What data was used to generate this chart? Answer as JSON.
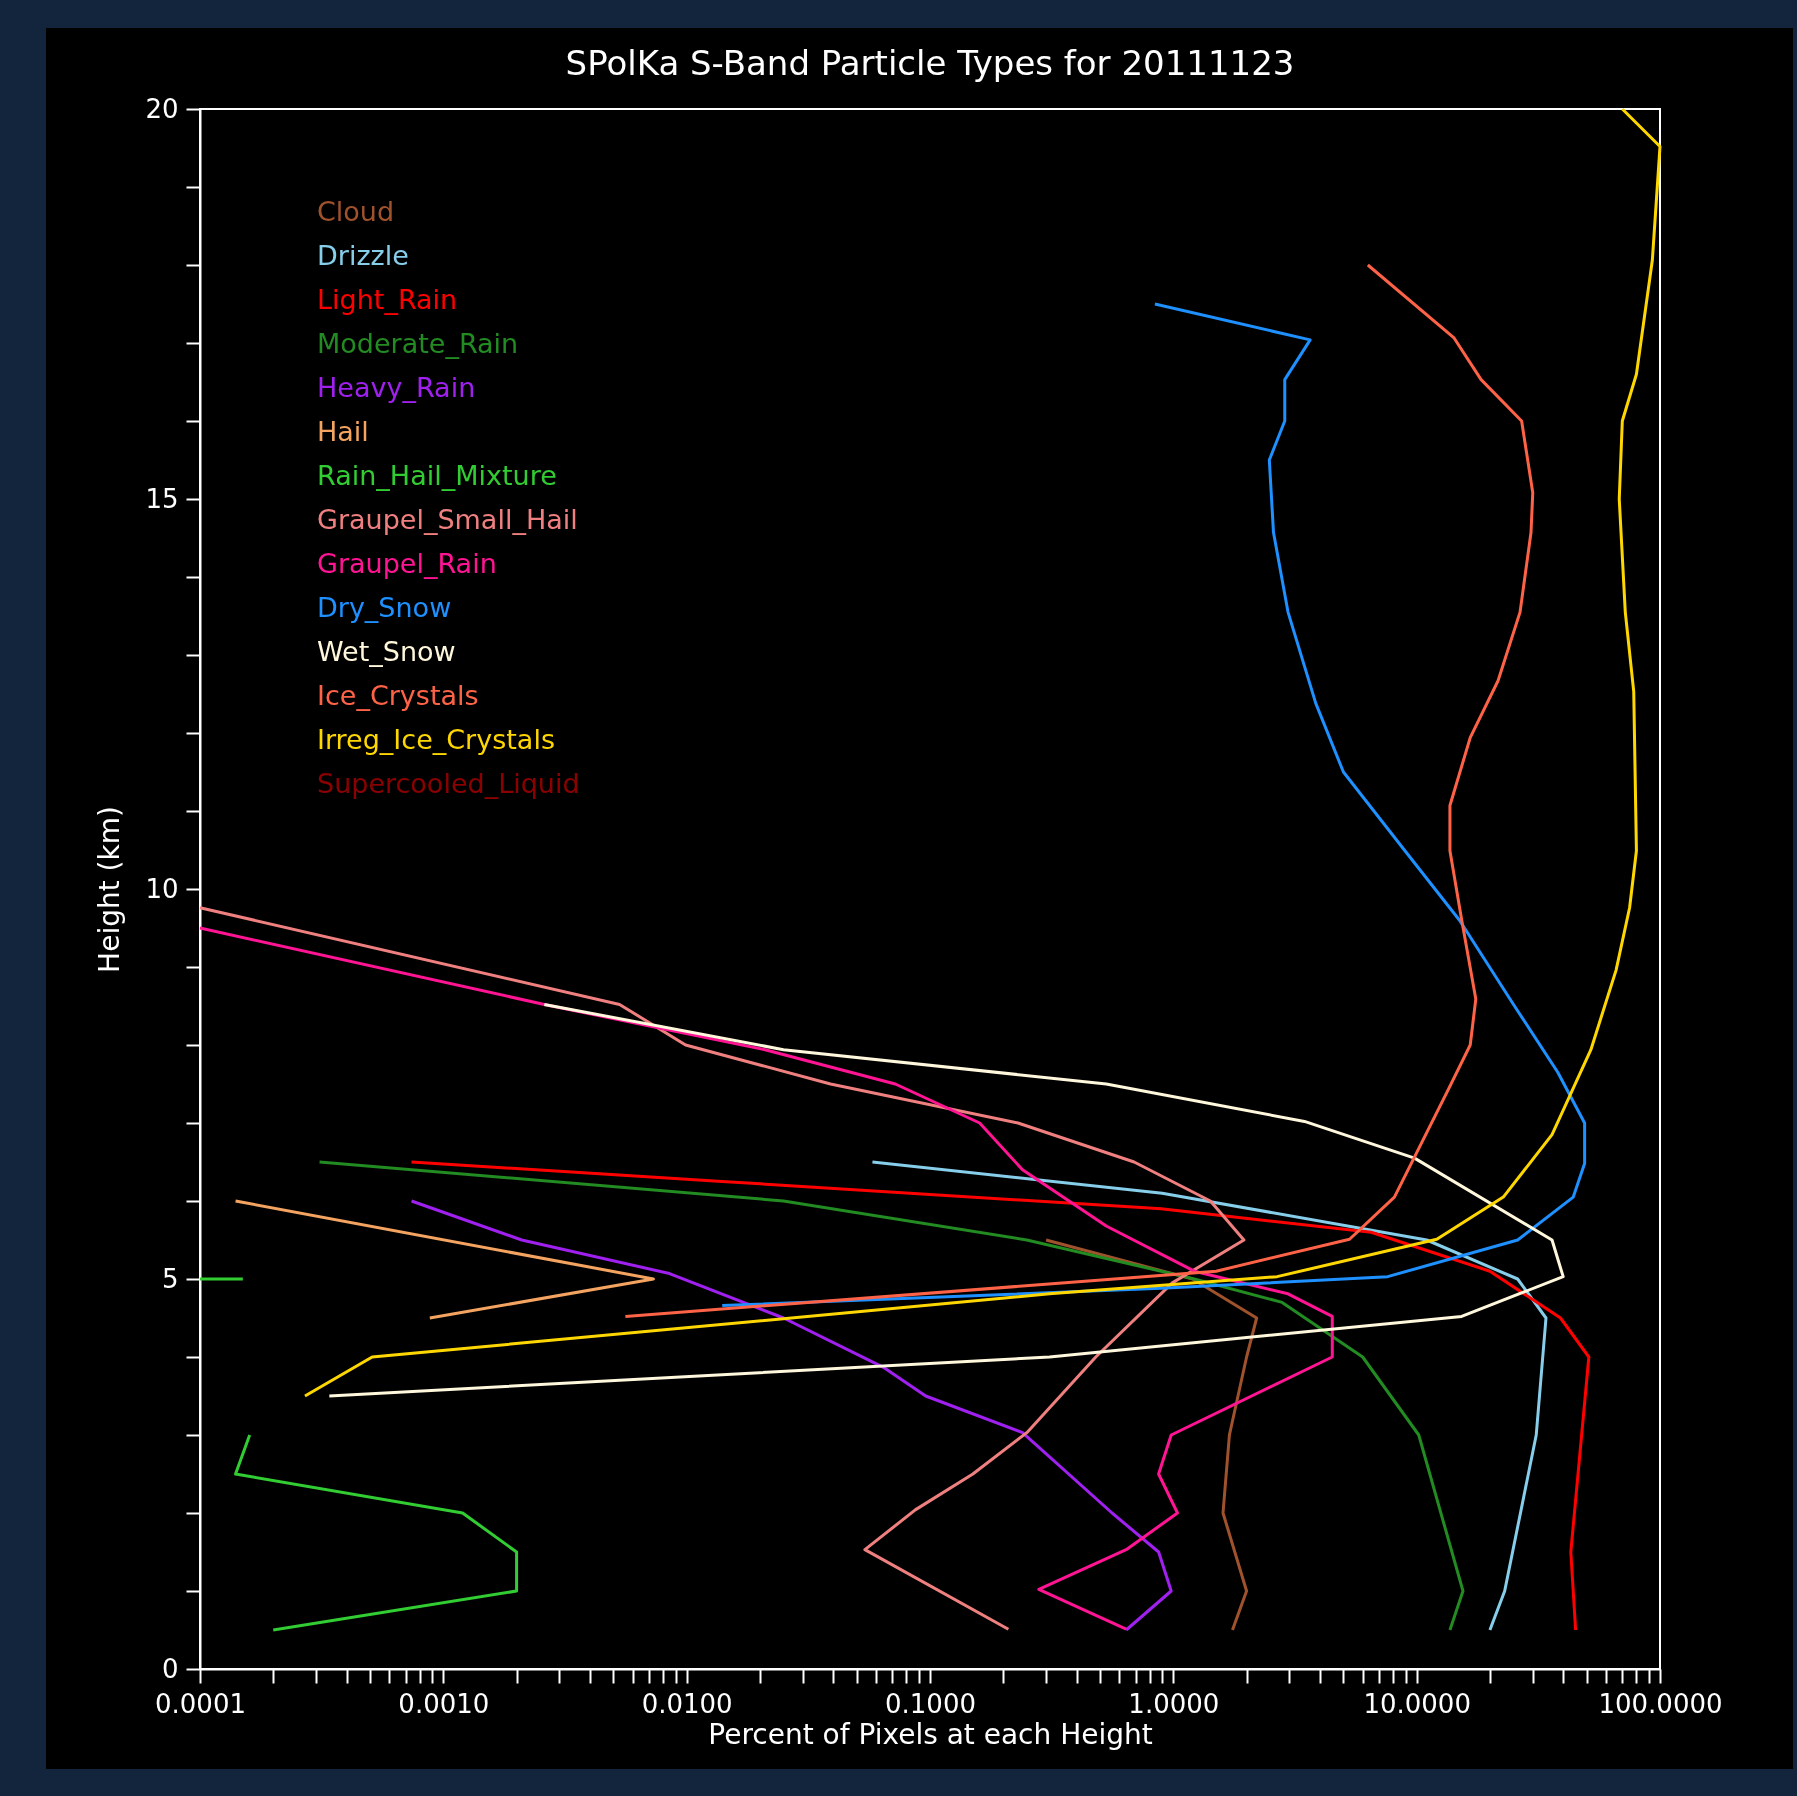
{
  "chart_data": {
    "type": "line",
    "title": "SPolKa S-Band Particle Types for 20111123",
    "xlabel": "Percent of Pixels at each Height",
    "ylabel": "Height (km)",
    "log": "x",
    "grid": false,
    "legend": "top left",
    "xlim": [
      0.0001,
      100
    ],
    "ylim": [
      0,
      20
    ],
    "xticks": [
      {
        "value": 0.0001,
        "label": "0.0001"
      },
      {
        "value": 0.0002,
        "label": null
      },
      {
        "value": 0.0003,
        "label": null
      },
      {
        "value": 0.0004,
        "label": null
      },
      {
        "value": 0.0005,
        "label": null
      },
      {
        "value": 0.0006,
        "label": null
      },
      {
        "value": 0.0007,
        "label": null
      },
      {
        "value": 0.0008,
        "label": null
      },
      {
        "value": 0.0009,
        "label": null
      },
      {
        "value": 0.001,
        "label": "0.0010"
      },
      {
        "value": 0.002,
        "label": null
      },
      {
        "value": 0.003,
        "label": null
      },
      {
        "value": 0.004,
        "label": null
      },
      {
        "value": 0.005,
        "label": null
      },
      {
        "value": 0.006,
        "label": null
      },
      {
        "value": 0.007,
        "label": null
      },
      {
        "value": 0.008,
        "label": null
      },
      {
        "value": 0.009,
        "label": null
      },
      {
        "value": 0.01,
        "label": "0.0100"
      },
      {
        "value": 0.02,
        "label": null
      },
      {
        "value": 0.03,
        "label": null
      },
      {
        "value": 0.04,
        "label": null
      },
      {
        "value": 0.05,
        "label": null
      },
      {
        "value": 0.06,
        "label": null
      },
      {
        "value": 0.07,
        "label": null
      },
      {
        "value": 0.08,
        "label": null
      },
      {
        "value": 0.09,
        "label": null
      },
      {
        "value": 0.1,
        "label": "0.1000"
      },
      {
        "value": 0.2,
        "label": null
      },
      {
        "value": 0.3,
        "label": null
      },
      {
        "value": 0.4,
        "label": null
      },
      {
        "value": 0.5,
        "label": null
      },
      {
        "value": 0.6,
        "label": null
      },
      {
        "value": 0.7,
        "label": null
      },
      {
        "value": 0.8,
        "label": null
      },
      {
        "value": 0.9,
        "label": null
      },
      {
        "value": 1,
        "label": "1.0000"
      },
      {
        "value": 2,
        "label": null
      },
      {
        "value": 3,
        "label": null
      },
      {
        "value": 4,
        "label": null
      },
      {
        "value": 5,
        "label": null
      },
      {
        "value": 6,
        "label": null
      },
      {
        "value": 7,
        "label": null
      },
      {
        "value": 8,
        "label": null
      },
      {
        "value": 9,
        "label": null
      },
      {
        "value": 10,
        "label": "10.0000"
      },
      {
        "value": 20,
        "label": null
      },
      {
        "value": 30,
        "label": null
      },
      {
        "value": 40,
        "label": null
      },
      {
        "value": 50,
        "label": null
      },
      {
        "value": 60,
        "label": null
      },
      {
        "value": 70,
        "label": null
      },
      {
        "value": 80,
        "label": null
      },
      {
        "value": 90,
        "label": null
      },
      {
        "value": 100,
        "label": "100.0000"
      }
    ],
    "yticks": [
      0,
      {
        "value": 1,
        "label": null
      },
      {
        "value": 2,
        "label": null
      },
      {
        "value": 3,
        "label": null
      },
      {
        "value": 4,
        "label": null
      },
      5,
      {
        "value": 6,
        "label": null
      },
      {
        "value": 7,
        "label": null
      },
      {
        "value": 8,
        "label": null
      },
      {
        "value": 9,
        "label": null
      },
      10,
      {
        "value": 11,
        "label": null
      },
      {
        "value": 12,
        "label": null
      },
      {
        "value": 13,
        "label": null
      },
      {
        "value": 14,
        "label": null
      },
      15,
      {
        "value": 16,
        "label": null
      },
      {
        "value": 17,
        "label": null
      },
      {
        "value": 18,
        "label": null
      },
      {
        "value": 19,
        "label": null
      },
      20
    ],
    "series": [
      {
        "name": "Cloud",
        "color": "#a0522d",
        "x": [
          1.75,
          2.0,
          1.6,
          1.7,
          2.0,
          2.2,
          1.2,
          0.3
        ],
        "values": [
          0.5,
          1,
          2,
          3,
          4,
          4.5,
          5,
          5.5
        ]
      },
      {
        "name": "Drizzle",
        "color": "#87ceeb",
        "x": [
          20,
          23,
          31,
          34,
          26,
          11,
          0.9,
          0.058
        ],
        "values": [
          0.5,
          1,
          3,
          4.5,
          5,
          5.5,
          6.1,
          6.5
        ]
      },
      {
        "name": "Light_Rain",
        "color": "#ff0000",
        "x": [
          45,
          43,
          51,
          39,
          20,
          6.5,
          0.89,
          0.014,
          0.00074
        ],
        "values": [
          0.5,
          1.5,
          4,
          4.5,
          5.1,
          5.6,
          5.9,
          6.25,
          6.5
        ]
      },
      {
        "name": "Moderate_Rain",
        "color": "#228b22",
        "x": [
          13.7,
          15.5,
          10.2,
          6.0,
          2.8,
          1.22,
          0.25,
          0.025,
          0.00031
        ],
        "values": [
          0.5,
          1,
          3,
          4,
          4.7,
          5,
          5.5,
          6,
          6.5
        ]
      },
      {
        "name": "Heavy_Rain",
        "color": "#a020f0",
        "x": [
          0.00074,
          0.0021,
          0.0085,
          0.025,
          0.065,
          0.096,
          0.24,
          0.56,
          0.87,
          0.98,
          0.64
        ],
        "values": [
          6.0,
          5.5,
          5.07,
          4.5,
          3.86,
          3.5,
          3.03,
          2.0,
          1.5,
          1.0,
          0.5
        ]
      },
      {
        "name": "Hail",
        "color": "#f4a460",
        "x": [
          0.00014,
          0.0073,
          0.00088
        ],
        "values": [
          6.0,
          5.0,
          4.5
        ]
      },
      {
        "name": "Rain_Hail_Mixture",
        "color": "#32cd32",
        "x": [
          0.0002,
          0.002,
          0.002,
          0.0012,
          0.00014,
          0.00016,
          null,
          0.0001,
          0.00015
        ],
        "values": [
          0.5,
          1.0,
          1.5,
          2.0,
          2.5,
          3.0,
          null,
          5.0,
          5.0
        ]
      },
      {
        "name": "Graupel_Small_Hail",
        "color": "#f08080",
        "x": [
          0.0001,
          0.0053,
          0.0099,
          0.039,
          0.23,
          0.69,
          1.42,
          1.95,
          0.99,
          0.48,
          0.25,
          0.15,
          0.087,
          0.054,
          0.21
        ],
        "values": [
          9.76,
          8.52,
          8.0,
          7.5,
          7.0,
          6.5,
          6.0,
          5.5,
          4.95,
          4.0,
          3.03,
          2.5,
          2.04,
          1.53,
          0.51
        ]
      },
      {
        "name": "Graupel_Rain",
        "color": "#ff1493",
        "x": [
          0.0001,
          0.0026,
          0.021,
          0.072,
          0.16,
          0.24,
          0.53,
          1.22,
          2.96,
          4.5,
          4.5,
          0.98,
          0.87,
          1.04,
          0.64,
          0.28,
          0.64
        ],
        "values": [
          9.5,
          8.52,
          7.94,
          7.5,
          7.0,
          6.4,
          5.68,
          5.1,
          4.81,
          4.52,
          4.0,
          3.0,
          2.5,
          2.0,
          1.53,
          1.02,
          0.51
        ]
      },
      {
        "name": "Dry_Snow",
        "color": "#1e90ff",
        "x": [
          0.84,
          3.65,
          2.87,
          2.87,
          2.48,
          2.58,
          2.96,
          3.85,
          5.0,
          8.9,
          15.0,
          25,
          38,
          49,
          49,
          44,
          26,
          7.6,
          0.89,
          0.014
        ],
        "values": [
          17.5,
          17.04,
          16.53,
          16.0,
          15.5,
          14.57,
          13.55,
          12.38,
          11.5,
          10.5,
          9.6,
          8.52,
          7.65,
          7.0,
          6.48,
          6.05,
          5.5,
          5.03,
          4.88,
          4.66
        ]
      },
      {
        "name": "Wet_Snow",
        "color": "#fff8dc",
        "x": [
          0.0026,
          0.025,
          0.53,
          3.46,
          9.8,
          36,
          40,
          15.3,
          0.31,
          0.00034
        ],
        "values": [
          8.52,
          7.94,
          7.5,
          7.02,
          6.55,
          5.5,
          5.03,
          4.52,
          4.0,
          3.5
        ]
      },
      {
        "name": "Ice_Crystals",
        "color": "#ff6347",
        "x": [
          6.3,
          14.2,
          18.4,
          27,
          30,
          29.5,
          26.6,
          21.6,
          16.6,
          13.7,
          13.7,
          15.3,
          17.5,
          16.6,
          13.5,
          8.1,
          5.3,
          1.5,
          0.0056
        ],
        "values": [
          18.0,
          17.07,
          16.53,
          16.0,
          15.08,
          14.57,
          13.55,
          12.67,
          11.94,
          11.07,
          10.49,
          9.61,
          8.59,
          8.0,
          7.43,
          6.05,
          5.51,
          5.1,
          4.52
        ]
      },
      {
        "name": "Irreg_Ice_Crystals",
        "color": "#ffd700",
        "x": [
          70,
          100,
          93,
          80,
          70,
          68,
          72,
          78,
          80,
          75,
          66,
          52,
          36,
          22.7,
          12.1,
          2.67,
          0.31,
          0.00051,
          0.00027
        ],
        "values": [
          20,
          19.52,
          18.06,
          16.6,
          16.0,
          15.0,
          13.55,
          12.53,
          10.49,
          9.76,
          8.96,
          7.94,
          6.85,
          6.05,
          5.51,
          5.03,
          4.81,
          4.0,
          3.5
        ]
      },
      {
        "name": "Supercooled_Liquid",
        "color": "#8b0000"
      }
    ]
  }
}
